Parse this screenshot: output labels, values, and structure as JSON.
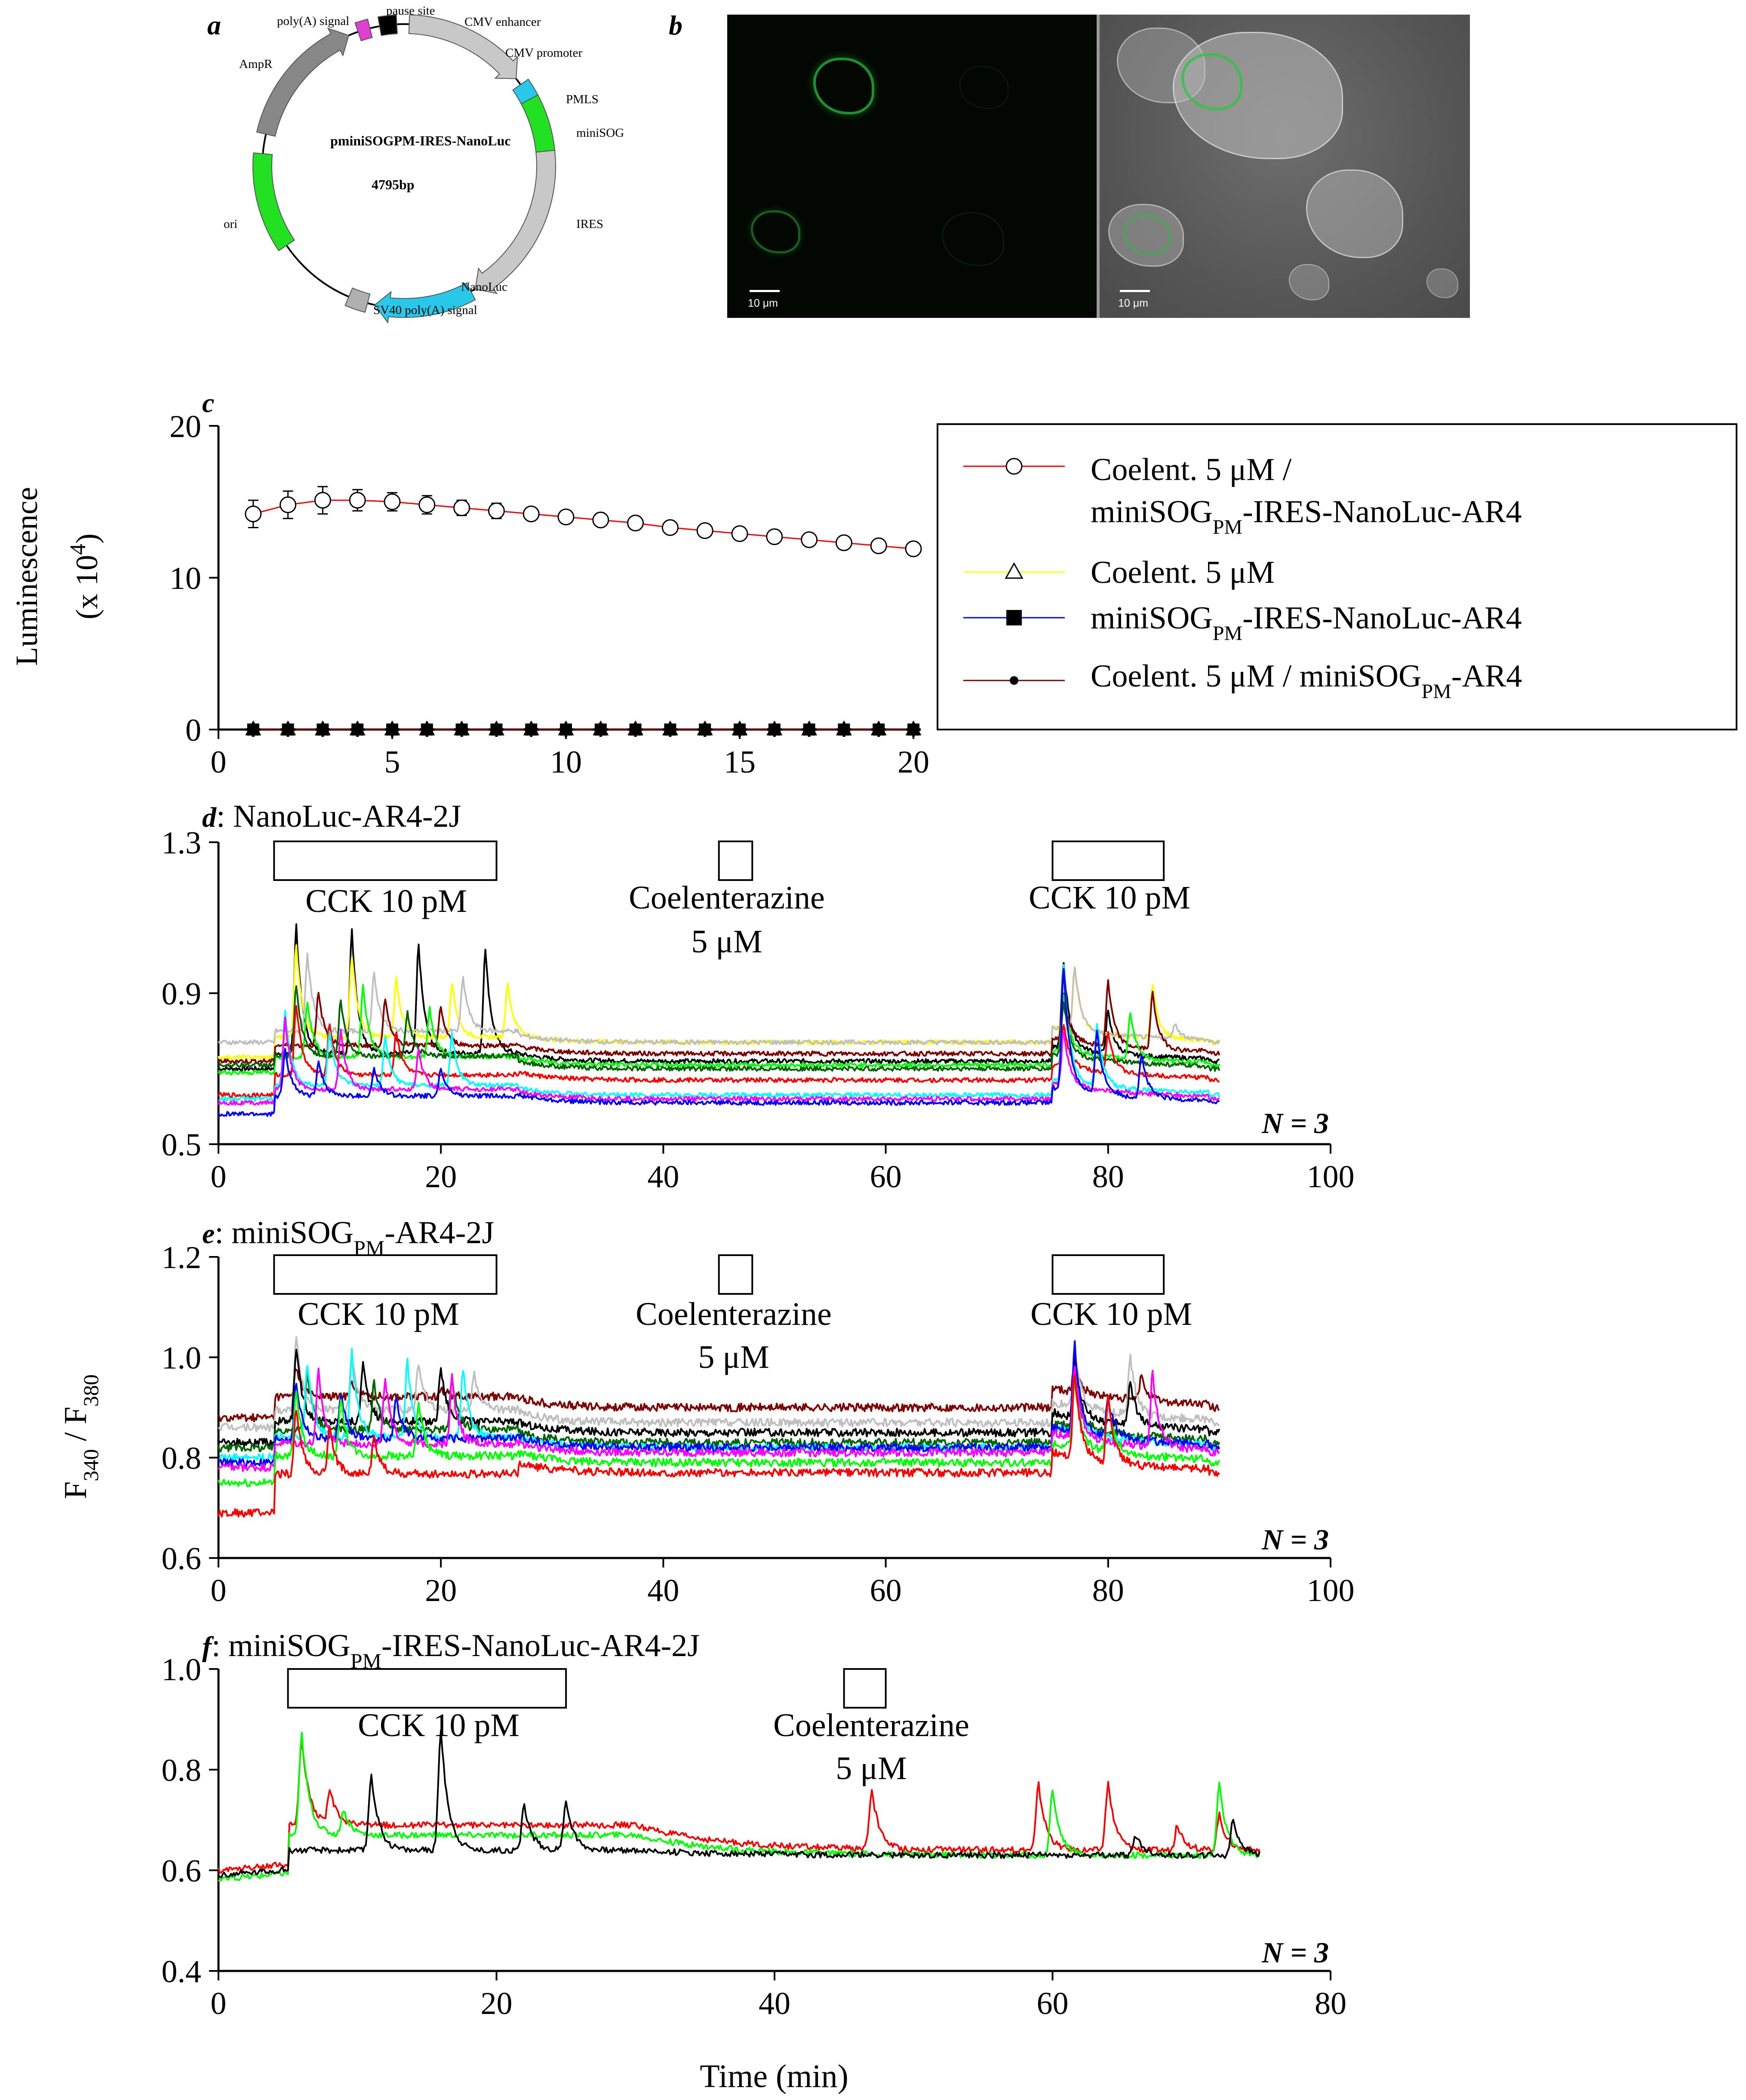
{
  "panels": {
    "a": {
      "letter": "a",
      "plasmid_name": "pminiSOGPM-IRES-NanoLuc",
      "plasmid_size": "4795bp",
      "features": {
        "polyA": "poly(A) signal",
        "pause": "pause site",
        "cmv_enh": "CMV enhancer",
        "cmv_prom": "CMV promoter",
        "pmls": "PMLS",
        "minisog": "miniSOG",
        "ires": "IRES",
        "nanoluc": "NanoLuc",
        "sv40": "SV40 poly(A) signal",
        "ori": "ori",
        "ampr": "AmpR"
      }
    },
    "b": {
      "letter": "b",
      "scale_left": "10 μm",
      "scale_right": "10 μm"
    },
    "c": {
      "letter": "c",
      "ylabel_main": "Luminescence",
      "ylabel_unit_prefix": "(x 10",
      "ylabel_unit_exp": "4",
      "ylabel_unit_suffix": ")",
      "legend": {
        "l1a": "Coelent. 5 μM /",
        "l1b_pre": "miniSOG",
        "l1b_sub": "PM",
        "l1b_post": "-IRES-NanoLuc-AR4",
        "l2": "Coelent. 5 μM",
        "l3_pre": "miniSOG",
        "l3_sub": "PM",
        "l3_post": "-IRES-NanoLuc-AR4",
        "l4_pre": "Coelent. 5 μM / miniSOG",
        "l4_sub": "PM",
        "l4_post": "-AR4"
      }
    },
    "d": {
      "letter": "d",
      "title": ": NanoLuc-AR4-2J",
      "stim1": "CCK 10 pM",
      "stim2a": "Coelenterazine",
      "stim2b": "5 μM",
      "stim3": "CCK 10 pM",
      "n_label": "N = 3"
    },
    "e": {
      "letter": "e",
      "title_pre": ": miniSOG",
      "title_sub": "PM",
      "title_post": "-AR4-2J",
      "stim1": "CCK 10 pM",
      "stim2a": "Coelenterazine",
      "stim2b": "5 μM",
      "stim3": "CCK 10 pM",
      "n_label": "N = 3",
      "ylabel_F": "F",
      "ylabel_sub1": "340",
      "ylabel_slash": " / F",
      "ylabel_sub2": "380"
    },
    "f": {
      "letter": "f",
      "title_pre": ": miniSOG",
      "title_sub": "PM",
      "title_post": "-IRES-NanoLuc-AR4-2J",
      "stim1": "CCK 10 pM",
      "stim2a": "Coelenterazine",
      "stim2b": "5 μM",
      "n_label": "N = 3",
      "xlabel": "Time (min)"
    }
  },
  "chart_data": [
    {
      "id": "c",
      "type": "line",
      "title": "",
      "xlabel": "",
      "ylabel": "Luminescence (x 10^4)",
      "xlim": [
        0,
        20
      ],
      "ylim": [
        0,
        20
      ],
      "xticks": [
        0,
        5,
        10,
        15,
        20
      ],
      "yticks": [
        0,
        10,
        20
      ],
      "x": [
        1,
        2,
        3,
        4,
        5,
        6,
        7,
        8,
        9,
        10,
        11,
        12,
        13,
        14,
        15,
        16,
        17,
        18,
        19,
        20
      ],
      "series": [
        {
          "name": "Coelent. 5 μM / miniSOGPM-IRES-NanoLuc-AR4",
          "color": "#ff0000",
          "marker": "open-circle",
          "values": [
            14.2,
            14.8,
            15.1,
            15.1,
            15.0,
            14.8,
            14.6,
            14.4,
            14.2,
            14.0,
            13.8,
            13.6,
            13.3,
            13.1,
            12.9,
            12.7,
            12.5,
            12.3,
            12.1,
            11.9
          ],
          "errors": [
            0.9,
            0.9,
            0.9,
            0.7,
            0.6,
            0.6,
            0.5,
            0.5,
            0.4,
            0.4,
            0.4,
            0.4,
            0.4,
            0.3,
            0.3,
            0.3,
            0.3,
            0.3,
            0.3,
            0.3
          ]
        },
        {
          "name": "Coelent. 5 μM",
          "color": "#ffff00",
          "marker": "open-triangle",
          "values": [
            0,
            0,
            0,
            0,
            0,
            0,
            0,
            0,
            0,
            0,
            0,
            0,
            0,
            0,
            0,
            0,
            0,
            0,
            0,
            0
          ]
        },
        {
          "name": "miniSOGPM-IRES-NanoLuc-AR4",
          "color": "#0000ff",
          "marker": "filled-square",
          "values": [
            0,
            0,
            0,
            0,
            0,
            0,
            0,
            0,
            0,
            0,
            0,
            0,
            0,
            0,
            0,
            0,
            0,
            0,
            0,
            0
          ]
        },
        {
          "name": "Coelent. 5 μM / miniSOGPM-AR4",
          "color": "#800000",
          "marker": "filled-circle",
          "values": [
            0,
            0,
            0,
            0,
            0,
            0,
            0,
            0,
            0,
            0,
            0,
            0,
            0,
            0,
            0,
            0,
            0,
            0,
            0,
            0
          ]
        }
      ]
    },
    {
      "id": "d",
      "type": "line",
      "title": "NanoLuc-AR4-2J",
      "xlabel": "",
      "ylabel": "F340 / F380",
      "xlim": [
        0,
        100
      ],
      "ylim": [
        0.5,
        1.3
      ],
      "xticks": [
        0,
        20,
        40,
        60,
        80,
        100
      ],
      "yticks": [
        0.5,
        0.9,
        1.3
      ],
      "trace_end": 90,
      "stimuli": [
        {
          "label": "CCK 10 pM",
          "start": 5,
          "end": 25
        },
        {
          "label": "Coelenterazine 5 μM",
          "start": 45,
          "end": 48
        },
        {
          "label": "CCK 10 pM",
          "start": 75,
          "end": 85
        }
      ],
      "series": [
        {
          "name": "cell-1",
          "color": "#000000",
          "baseline": 0.7,
          "late": 0.72,
          "peaks1": [
            [
              7,
              1.08
            ],
            [
              12,
              1.07
            ],
            [
              18,
              1.03
            ],
            [
              24,
              1.02
            ]
          ],
          "peaks2": [
            [
              76,
              0.98
            ],
            [
              80,
              0.85
            ]
          ]
        },
        {
          "name": "cell-2",
          "color": "#ffff00",
          "baseline": 0.73,
          "late": 0.77,
          "peaks1": [
            [
              7,
              1.03
            ],
            [
              12,
              1.0
            ],
            [
              16,
              0.94
            ],
            [
              21,
              0.93
            ],
            [
              26,
              0.93
            ]
          ],
          "peaks2": [
            [
              77,
              0.97
            ],
            [
              84,
              0.92
            ]
          ]
        },
        {
          "name": "cell-3",
          "color": "#bfbfbf",
          "baseline": 0.77,
          "late": 0.77,
          "peaks1": [
            [
              8,
              1.0
            ],
            [
              14,
              0.95
            ],
            [
              22,
              0.94
            ]
          ],
          "peaks2": [
            [
              77,
              0.97
            ],
            [
              86,
              0.82
            ]
          ]
        },
        {
          "name": "cell-4",
          "color": "#800000",
          "baseline": 0.72,
          "late": 0.74,
          "peaks1": [
            [
              9,
              0.9
            ],
            [
              15,
              0.88
            ],
            [
              20,
              0.86
            ]
          ],
          "peaks2": [
            [
              76,
              0.9
            ],
            [
              80,
              0.93
            ],
            [
              84,
              0.9
            ]
          ]
        },
        {
          "name": "cell-5",
          "color": "#00ff00",
          "baseline": 0.69,
          "late": 0.71,
          "peaks1": [
            [
              8,
              0.88
            ],
            [
              13,
              0.92
            ],
            [
              19,
              0.86
            ]
          ],
          "peaks2": [
            [
              76,
              0.9
            ],
            [
              82,
              0.85
            ]
          ]
        },
        {
          "name": "cell-6",
          "color": "#006400",
          "baseline": 0.71,
          "late": 0.7,
          "peaks1": [
            [
              7,
              0.92
            ],
            [
              11,
              0.88
            ],
            [
              17,
              0.85
            ]
          ],
          "peaks2": [
            [
              76,
              0.88
            ]
          ]
        },
        {
          "name": "cell-7",
          "color": "#ff0000",
          "baseline": 0.63,
          "late": 0.67,
          "peaks1": [
            [
              7,
              0.87
            ],
            [
              10,
              0.82
            ],
            [
              16,
              0.8
            ]
          ],
          "peaks2": [
            [
              76,
              0.82
            ],
            [
              80,
              0.8
            ]
          ]
        },
        {
          "name": "cell-8",
          "color": "#00ffff",
          "baseline": 0.62,
          "late": 0.63,
          "peaks1": [
            [
              6,
              0.85
            ],
            [
              10,
              0.8
            ],
            [
              15,
              0.78
            ],
            [
              21,
              0.79
            ]
          ],
          "peaks2": [
            [
              76,
              0.97
            ],
            [
              79,
              0.82
            ]
          ]
        },
        {
          "name": "cell-9",
          "color": "#ff00ff",
          "baseline": 0.61,
          "late": 0.62,
          "peaks1": [
            [
              6,
              0.83
            ],
            [
              11,
              0.8
            ],
            [
              18,
              0.75
            ]
          ],
          "peaks2": [
            [
              76,
              0.8
            ]
          ]
        },
        {
          "name": "cell-10",
          "color": "#0000ff",
          "baseline": 0.58,
          "late": 0.61,
          "peaks1": [
            [
              6,
              0.75
            ],
            [
              9,
              0.72
            ],
            [
              14,
              0.7
            ],
            [
              20,
              0.7
            ]
          ],
          "peaks2": [
            [
              76,
              0.97
            ],
            [
              79,
              0.8
            ],
            [
              83,
              0.74
            ]
          ]
        }
      ]
    },
    {
      "id": "e",
      "type": "line",
      "title": "miniSOGPM-AR4-2J",
      "xlabel": "",
      "ylabel": "F340 / F380",
      "xlim": [
        0,
        100
      ],
      "ylim": [
        0.6,
        1.2
      ],
      "xticks": [
        0,
        20,
        40,
        60,
        80,
        100
      ],
      "yticks": [
        0.6,
        0.8,
        1.0,
        1.2
      ],
      "trace_end": 90,
      "stimuli": [
        {
          "label": "CCK 10 pM",
          "start": 5,
          "end": 25
        },
        {
          "label": "Coelenterazine 5 μM",
          "start": 45,
          "end": 48
        },
        {
          "label": "CCK 10 pM",
          "start": 75,
          "end": 85
        }
      ],
      "series": [
        {
          "name": "cell-1",
          "color": "#800000",
          "baseline": 0.88,
          "late": 0.9,
          "peaks1": [
            [
              7,
              0.98
            ],
            [
              12,
              0.95
            ],
            [
              20,
              0.94
            ]
          ],
          "peaks2": [
            [
              77,
              0.98
            ],
            [
              83,
              0.96
            ]
          ]
        },
        {
          "name": "cell-2",
          "color": "#bfbfbf",
          "baseline": 0.86,
          "late": 0.87,
          "peaks1": [
            [
              7,
              1.04
            ],
            [
              12,
              1.0
            ],
            [
              18,
              0.99
            ],
            [
              23,
              0.97
            ]
          ],
          "peaks2": [
            [
              77,
              1.01
            ],
            [
              82,
              1.0
            ]
          ]
        },
        {
          "name": "cell-3",
          "color": "#000000",
          "baseline": 0.83,
          "late": 0.85,
          "peaks1": [
            [
              7,
              1.02
            ],
            [
              13,
              0.99
            ],
            [
              20,
              0.98
            ]
          ],
          "peaks2": [
            [
              77,
              1.0
            ],
            [
              82,
              0.95
            ]
          ]
        },
        {
          "name": "cell-4",
          "color": "#006400",
          "baseline": 0.82,
          "late": 0.83,
          "peaks1": [
            [
              8,
              0.97
            ],
            [
              14,
              0.95
            ],
            [
              21,
              0.96
            ]
          ],
          "peaks2": [
            [
              77,
              0.97
            ]
          ]
        },
        {
          "name": "cell-5",
          "color": "#00ffff",
          "baseline": 0.8,
          "late": 0.82,
          "peaks1": [
            [
              8,
              0.99
            ],
            [
              12,
              1.01
            ],
            [
              17,
              0.99
            ],
            [
              22,
              0.98
            ]
          ],
          "peaks2": [
            [
              77,
              0.96
            ]
          ]
        },
        {
          "name": "cell-6",
          "color": "#0000ff",
          "baseline": 0.79,
          "late": 0.82,
          "peaks1": [
            [
              7,
              0.95
            ],
            [
              11,
              0.93
            ],
            [
              16,
              0.92
            ]
          ],
          "peaks2": [
            [
              77,
              1.03
            ],
            [
              80,
              0.92
            ]
          ]
        },
        {
          "name": "cell-7",
          "color": "#ff00ff",
          "baseline": 0.78,
          "late": 0.81,
          "peaks1": [
            [
              9,
              0.97
            ],
            [
              15,
              0.96
            ],
            [
              21,
              0.96
            ]
          ],
          "peaks2": [
            [
              77,
              0.98
            ],
            [
              84,
              0.97
            ]
          ]
        },
        {
          "name": "cell-8",
          "color": "#00ff00",
          "baseline": 0.75,
          "late": 0.79,
          "peaks1": [
            [
              7,
              0.93
            ],
            [
              11,
              0.92
            ],
            [
              18,
              0.91
            ]
          ],
          "peaks2": [
            [
              77,
              0.95
            ],
            [
              80,
              0.92
            ]
          ]
        },
        {
          "name": "cell-9",
          "color": "#ff0000",
          "baseline": 0.69,
          "late": 0.77,
          "peaks1": [
            [
              7,
              0.9
            ],
            [
              10,
              0.86
            ],
            [
              14,
              0.84
            ]
          ],
          "peaks2": [
            [
              77,
              0.97
            ],
            [
              80,
              0.92
            ]
          ]
        }
      ]
    },
    {
      "id": "f",
      "type": "line",
      "title": "miniSOGPM-IRES-NanoLuc-AR4-2J",
      "xlabel": "Time (min)",
      "ylabel": "F340 / F380",
      "xlim": [
        0,
        80
      ],
      "ylim": [
        0.4,
        1.0
      ],
      "xticks": [
        0,
        20,
        40,
        60,
        80
      ],
      "yticks": [
        0.4,
        0.6,
        0.8,
        1.0
      ],
      "trace_end": 75,
      "stimuli": [
        {
          "label": "CCK 10 pM",
          "start": 5,
          "end": 25
        },
        {
          "label": "Coelenterazine 5 μM",
          "start": 45,
          "end": 48
        }
      ],
      "series": [
        {
          "name": "cell-1",
          "color": "#ff0000",
          "baseline": 0.6,
          "late": 0.64,
          "plateau": 0.69,
          "peaks1": [
            [
              6,
              0.86
            ],
            [
              8,
              0.76
            ]
          ],
          "peaks2": [
            [
              47,
              0.76
            ],
            [
              59,
              0.77
            ],
            [
              64,
              0.77
            ],
            [
              69,
              0.69
            ],
            [
              72,
              0.71
            ]
          ]
        },
        {
          "name": "cell-2",
          "color": "#00ff00",
          "baseline": 0.58,
          "late": 0.63,
          "plateau": 0.67,
          "peaks1": [
            [
              6,
              0.87
            ],
            [
              9,
              0.72
            ]
          ],
          "peaks2": [
            [
              60,
              0.76
            ],
            [
              72,
              0.77
            ]
          ]
        },
        {
          "name": "cell-3",
          "color": "#000000",
          "baseline": 0.59,
          "late": 0.63,
          "plateau": 0.64,
          "peaks1": [
            [
              11,
              0.79
            ],
            [
              16,
              0.88
            ],
            [
              22,
              0.73
            ],
            [
              25,
              0.74
            ]
          ],
          "peaks2": [
            [
              66,
              0.67
            ],
            [
              73,
              0.7
            ]
          ]
        }
      ]
    }
  ]
}
